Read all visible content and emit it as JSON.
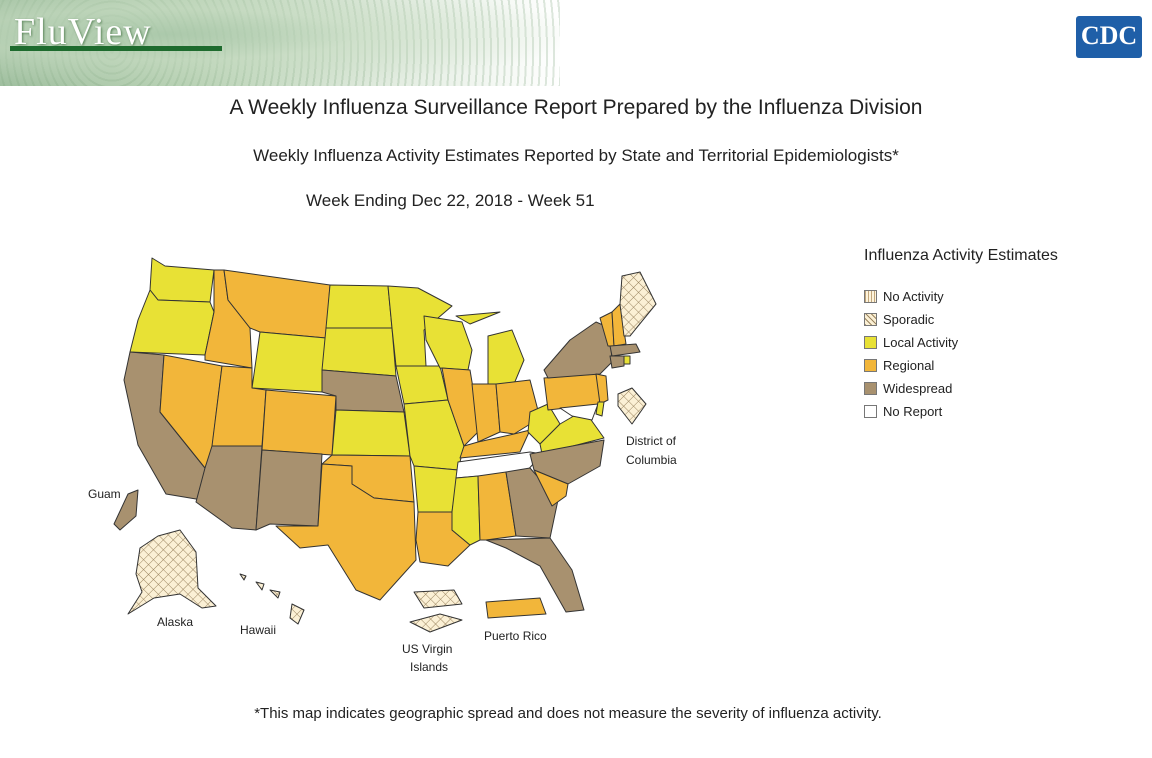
{
  "header": {
    "brand": "FluView",
    "logo_text": "CDC"
  },
  "titles": {
    "main": "A Weekly Influenza Surveillance Report Prepared by the Influenza Division",
    "sub": "Weekly Influenza Activity Estimates Reported by State and Territorial Epidemiologists*",
    "week": "Week Ending Dec 22, 2018 - Week 51"
  },
  "legend": {
    "title": "Influenza Activity Estimates",
    "items": [
      {
        "label": "No Activity",
        "color": "#fdf3dc",
        "pattern": "lines"
      },
      {
        "label": "Sporadic",
        "color": "#fbf0d5",
        "pattern": "cross"
      },
      {
        "label": "Local Activity",
        "color": "#e8e135",
        "pattern": "none"
      },
      {
        "label": "Regional",
        "color": "#f2b63a",
        "pattern": "none"
      },
      {
        "label": "Widespread",
        "color": "#a8916f",
        "pattern": "none"
      },
      {
        "label": "No Report",
        "color": "#ffffff",
        "pattern": "none"
      }
    ]
  },
  "map_labels": {
    "dc": "District of",
    "dc2": "Columbia",
    "guam": "Guam",
    "alaska": "Alaska",
    "hawaii": "Hawaii",
    "usvi": "US Virgin",
    "usvi2": "Islands",
    "pr": "Puerto Rico"
  },
  "footnote": "*This map indicates geographic spread and does not measure the severity of influenza activity."
}
